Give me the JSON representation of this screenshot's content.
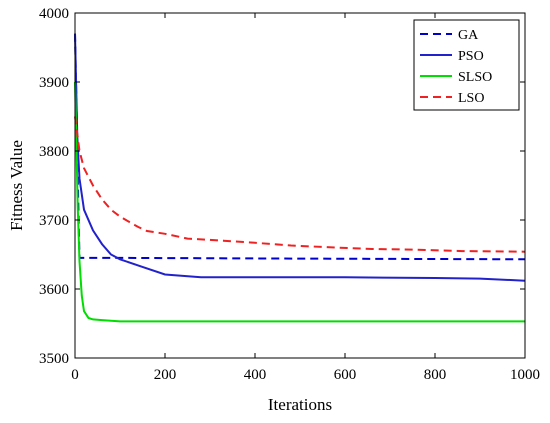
{
  "chart_data": {
    "type": "line",
    "xlabel": "Iterations",
    "ylabel": "Fitness Value",
    "xlim": [
      0,
      1000
    ],
    "ylim": [
      3500,
      4000
    ],
    "xticks": [
      0,
      200,
      400,
      600,
      800,
      1000
    ],
    "yticks": [
      3500,
      3600,
      3700,
      3800,
      3900,
      4000
    ],
    "grid": false,
    "legend_position": "top-right",
    "series": [
      {
        "name": "GA",
        "color": "#0000cc",
        "dash": "dashed",
        "points": [
          [
            0,
            3970
          ],
          [
            3,
            3880
          ],
          [
            5,
            3800
          ],
          [
            8,
            3700
          ],
          [
            10,
            3645
          ],
          [
            100,
            3645
          ],
          [
            500,
            3644
          ],
          [
            1000,
            3643
          ]
        ]
      },
      {
        "name": "PSO",
        "color": "#2222cc",
        "dash": "solid",
        "points": [
          [
            0,
            3970
          ],
          [
            5,
            3820
          ],
          [
            10,
            3760
          ],
          [
            20,
            3715
          ],
          [
            40,
            3685
          ],
          [
            60,
            3665
          ],
          [
            80,
            3650
          ],
          [
            100,
            3643
          ],
          [
            150,
            3632
          ],
          [
            200,
            3621
          ],
          [
            280,
            3617
          ],
          [
            400,
            3617
          ],
          [
            600,
            3617
          ],
          [
            800,
            3616
          ],
          [
            900,
            3615
          ],
          [
            1000,
            3612
          ]
        ]
      },
      {
        "name": "SLSO",
        "color": "#00dd00",
        "dash": "solid",
        "points": [
          [
            0,
            3900
          ],
          [
            3,
            3820
          ],
          [
            6,
            3720
          ],
          [
            10,
            3640
          ],
          [
            15,
            3590
          ],
          [
            20,
            3568
          ],
          [
            30,
            3558
          ],
          [
            40,
            3556
          ],
          [
            60,
            3555
          ],
          [
            100,
            3553
          ],
          [
            300,
            3553
          ],
          [
            600,
            3553
          ],
          [
            1000,
            3553
          ]
        ]
      },
      {
        "name": "LSO",
        "color": "#ee2222",
        "dash": "dashed",
        "points": [
          [
            0,
            3850
          ],
          [
            10,
            3800
          ],
          [
            20,
            3775
          ],
          [
            40,
            3750
          ],
          [
            60,
            3730
          ],
          [
            80,
            3715
          ],
          [
            100,
            3705
          ],
          [
            140,
            3690
          ],
          [
            160,
            3684
          ],
          [
            200,
            3680
          ],
          [
            250,
            3673
          ],
          [
            330,
            3670
          ],
          [
            400,
            3667
          ],
          [
            480,
            3663
          ],
          [
            580,
            3660
          ],
          [
            660,
            3658
          ],
          [
            760,
            3657
          ],
          [
            860,
            3655
          ],
          [
            1000,
            3654
          ]
        ]
      }
    ]
  }
}
